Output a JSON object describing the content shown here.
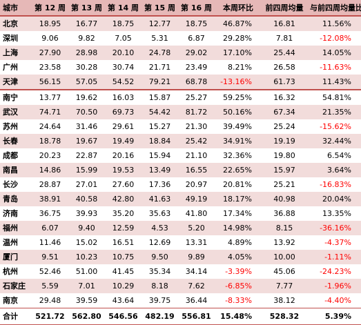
{
  "colors": {
    "header_bg": "#e6b8b7",
    "pink_row": "#f2dcdb",
    "negative_text": "#ff0000",
    "rule": "#c0504d"
  },
  "headers": [
    "城市",
    "第 12 周",
    "第 13 周",
    "第 14 周",
    "第 15 周",
    "第 16 周",
    "本周环比",
    "前四周均量",
    "与前四周均量比"
  ],
  "rows": [
    [
      "北京",
      "18.95",
      "16.77",
      "18.75",
      "12.77",
      "18.75",
      "46.87%",
      "16.81",
      "11.56%"
    ],
    [
      "深圳",
      "9.06",
      "9.82",
      "7.05",
      "5.31",
      "6.87",
      "29.28%",
      "7.81",
      "-12.08%"
    ],
    [
      "上海",
      "27.90",
      "28.98",
      "20.10",
      "24.78",
      "29.02",
      "17.10%",
      "25.44",
      "14.05%"
    ],
    [
      "广州",
      "23.58",
      "30.28",
      "30.74",
      "21.71",
      "23.49",
      "8.21%",
      "26.58",
      "-11.63%"
    ],
    [
      "天津",
      "56.15",
      "57.05",
      "54.52",
      "79.21",
      "68.78",
      "-13.16%",
      "61.73",
      "11.43%"
    ],
    [
      "南宁",
      "13.77",
      "19.62",
      "16.03",
      "15.87",
      "25.27",
      "59.25%",
      "16.32",
      "54.81%"
    ],
    [
      "武汉",
      "74.71",
      "70.50",
      "69.73",
      "54.42",
      "81.72",
      "50.16%",
      "67.34",
      "21.35%"
    ],
    [
      "苏州",
      "24.64",
      "31.46",
      "29.61",
      "15.27",
      "21.30",
      "39.49%",
      "25.24",
      "-15.62%"
    ],
    [
      "长春",
      "18.78",
      "19.67",
      "19.49",
      "18.84",
      "25.42",
      "34.91%",
      "19.19",
      "32.44%"
    ],
    [
      "成都",
      "20.23",
      "22.87",
      "20.16",
      "15.94",
      "21.10",
      "32.36%",
      "19.80",
      "6.54%"
    ],
    [
      "南昌",
      "14.86",
      "15.99",
      "19.53",
      "13.49",
      "16.55",
      "22.65%",
      "15.97",
      "3.64%"
    ],
    [
      "长沙",
      "28.87",
      "27.01",
      "27.60",
      "17.36",
      "20.97",
      "20.81%",
      "25.21",
      "-16.83%"
    ],
    [
      "青岛",
      "38.91",
      "40.58",
      "42.80",
      "41.63",
      "49.19",
      "18.17%",
      "40.98",
      "20.04%"
    ],
    [
      "济南",
      "36.75",
      "39.93",
      "35.20",
      "35.63",
      "41.80",
      "17.34%",
      "36.88",
      "13.35%"
    ],
    [
      "福州",
      "6.07",
      "9.40",
      "12.59",
      "4.53",
      "5.20",
      "14.98%",
      "8.15",
      "-36.16%"
    ],
    [
      "温州",
      "11.46",
      "15.02",
      "16.51",
      "12.69",
      "13.31",
      "4.89%",
      "13.92",
      "-4.37%"
    ],
    [
      "厦门",
      "9.51",
      "10.23",
      "10.75",
      "9.50",
      "9.89",
      "4.05%",
      "10.00",
      "-1.11%"
    ],
    [
      "杭州",
      "52.46",
      "51.00",
      "41.45",
      "35.34",
      "34.14",
      "-3.39%",
      "45.06",
      "-24.23%"
    ],
    [
      "石家庄",
      "5.59",
      "7.01",
      "10.29",
      "8.18",
      "7.62",
      "-6.85%",
      "7.77",
      "-1.96%"
    ],
    [
      "南京",
      "29.48",
      "39.59",
      "43.64",
      "39.75",
      "36.44",
      "-8.33%",
      "38.12",
      "-4.40%"
    ]
  ],
  "total": [
    "合计",
    "521.72",
    "562.80",
    "546.56",
    "482.19",
    "556.81",
    "15.48%",
    "528.32",
    "5.39%"
  ]
}
